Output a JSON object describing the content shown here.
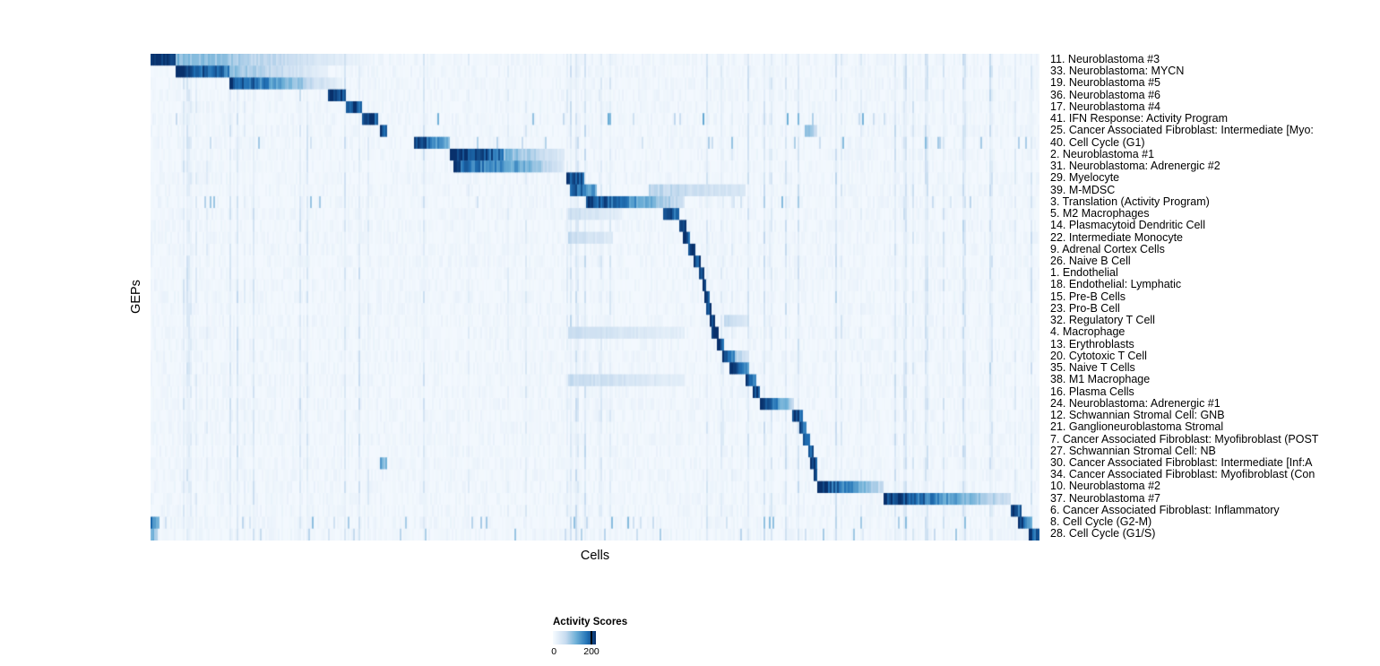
{
  "figure": {
    "ylabel": "GEPs",
    "xlabel": "Cells",
    "legend_title": "Activity Scores",
    "legend_min": "0",
    "legend_max": "200"
  },
  "chart_data": {
    "type": "heatmap",
    "title": "",
    "xlabel": "Cells",
    "ylabel": "GEPs",
    "value_range": [
      0,
      200
    ],
    "legend": {
      "title": "Activity Scores",
      "ticks": [
        0,
        200
      ],
      "position": "bottom"
    },
    "colormap": {
      "name": "Blues",
      "low": "#f7fbff",
      "mid": "#6baed6",
      "high": "#08306b"
    },
    "description": "Block-diagonal heatmap of GEP activity scores across cells ordered by program assignment; each row has a contiguous high-activity block (values given as fractional x start/end, peak and fade intensity on 0-1 scale of the 0-200 score range).",
    "rows": [
      {
        "label": "11. Neuroblastoma #3",
        "blocks": [
          [
            0.0,
            0.028,
            1.0,
            0.85
          ],
          [
            0.028,
            0.235,
            0.45,
            0.08
          ]
        ]
      },
      {
        "label": "33. Neuroblastoma: MYCN",
        "blocks": [
          [
            0.028,
            0.088,
            1.0,
            0.7
          ],
          [
            0.088,
            0.2,
            0.4,
            0.08
          ]
        ]
      },
      {
        "label": "19. Neuroblastoma #5",
        "blocks": [
          [
            0.088,
            0.178,
            0.95,
            0.3
          ],
          [
            0.178,
            0.215,
            0.25,
            0.08
          ]
        ]
      },
      {
        "label": "36. Neuroblastoma #6",
        "blocks": [
          [
            0.199,
            0.219,
            1.0,
            0.85
          ]
        ]
      },
      {
        "label": "17. Neuroblastoma #4",
        "blocks": [
          [
            0.219,
            0.237,
            1.0,
            0.85
          ]
        ]
      },
      {
        "label": "41. IFN Response: Activity Program",
        "blocks": [
          [
            0.237,
            0.256,
            1.0,
            0.85
          ]
        ],
        "scatter": [
          0.04,
          0.35
        ]
      },
      {
        "label": "25. Cancer Associated Fibroblast: Intermediate [Myo:",
        "blocks": [
          [
            0.258,
            0.267,
            1.0,
            0.9
          ],
          [
            0.735,
            0.75,
            0.45,
            0.25
          ]
        ]
      },
      {
        "label": "40. Cell Cycle (G1)",
        "blocks": [
          [
            0.296,
            0.336,
            1.0,
            0.45
          ]
        ],
        "scatter": [
          0.05,
          0.3
        ]
      },
      {
        "label": "2. Neuroblastoma #1",
        "blocks": [
          [
            0.336,
            0.398,
            1.0,
            0.75
          ],
          [
            0.398,
            0.465,
            0.45,
            0.12
          ]
        ]
      },
      {
        "label": "31. Neuroblastoma: Adrenergic #2",
        "blocks": [
          [
            0.34,
            0.43,
            0.85,
            0.45
          ],
          [
            0.43,
            0.466,
            0.4,
            0.12
          ]
        ]
      },
      {
        "label": "29. Myelocyte",
        "blocks": [
          [
            0.468,
            0.488,
            1.0,
            0.75
          ]
        ]
      },
      {
        "label": "39. M-MDSC",
        "blocks": [
          [
            0.472,
            0.503,
            0.9,
            0.5
          ],
          [
            0.56,
            0.67,
            0.28,
            0.15
          ]
        ]
      },
      {
        "label": "3. Translation (Activity Program)",
        "blocks": [
          [
            0.49,
            0.6,
            1.0,
            0.18
          ]
        ],
        "scatter": [
          0.04,
          0.3
        ]
      },
      {
        "label": "5. M2 Macrophages",
        "blocks": [
          [
            0.576,
            0.595,
            1.0,
            0.7
          ],
          [
            0.47,
            0.53,
            0.22,
            0.1
          ]
        ]
      },
      {
        "label": "14. Plasmacytoid Dendritic Cell",
        "blocks": [
          [
            0.595,
            0.602,
            1.0,
            0.9
          ]
        ]
      },
      {
        "label": "22. Intermediate Monocyte",
        "blocks": [
          [
            0.599,
            0.607,
            1.0,
            0.9
          ],
          [
            0.47,
            0.52,
            0.25,
            0.12
          ]
        ]
      },
      {
        "label": "9. Adrenal Cortex Cells",
        "blocks": [
          [
            0.605,
            0.613,
            1.0,
            0.9
          ]
        ]
      },
      {
        "label": "26. Naive B Cell",
        "blocks": [
          [
            0.611,
            0.618,
            1.0,
            0.9
          ]
        ]
      },
      {
        "label": "1. Endothelial",
        "blocks": [
          [
            0.616,
            0.623,
            1.0,
            0.9
          ]
        ]
      },
      {
        "label": "18. Endothelial: Lymphatic",
        "blocks": [
          [
            0.62,
            0.626,
            1.0,
            0.9
          ]
        ]
      },
      {
        "label": "15. Pre-B Cells",
        "blocks": [
          [
            0.623,
            0.629,
            1.0,
            0.9
          ]
        ]
      },
      {
        "label": "23. Pro-B Cell",
        "blocks": [
          [
            0.626,
            0.632,
            1.0,
            0.9
          ]
        ]
      },
      {
        "label": "32. Regulatory T Cell",
        "blocks": [
          [
            0.629,
            0.635,
            1.0,
            0.9
          ],
          [
            0.645,
            0.672,
            0.25,
            0.12
          ]
        ]
      },
      {
        "label": "4. Macrophage",
        "blocks": [
          [
            0.632,
            0.639,
            1.0,
            0.9
          ],
          [
            0.47,
            0.6,
            0.22,
            0.1
          ]
        ]
      },
      {
        "label": "13. Erythroblasts",
        "blocks": [
          [
            0.637,
            0.646,
            1.0,
            0.85
          ]
        ]
      },
      {
        "label": "20. Cytotoxic T Cell",
        "blocks": [
          [
            0.643,
            0.657,
            1.0,
            0.6
          ],
          [
            0.657,
            0.673,
            0.35,
            0.15
          ]
        ]
      },
      {
        "label": "35. Naive T Cells",
        "blocks": [
          [
            0.652,
            0.673,
            0.95,
            0.6
          ]
        ]
      },
      {
        "label": "38. M1 Macrophage",
        "blocks": [
          [
            0.67,
            0.681,
            1.0,
            0.75
          ],
          [
            0.47,
            0.6,
            0.25,
            0.1
          ]
        ]
      },
      {
        "label": "16. Plasma Cells",
        "blocks": [
          [
            0.678,
            0.686,
            1.0,
            0.85
          ]
        ]
      },
      {
        "label": "24. Neuroblastoma: Adrenergic #1",
        "blocks": [
          [
            0.686,
            0.723,
            1.0,
            0.28
          ]
        ]
      },
      {
        "label": "12. Schwannian Stromal Cell: GNB",
        "blocks": [
          [
            0.722,
            0.733,
            1.0,
            0.7
          ]
        ]
      },
      {
        "label": "21. Ganglioneuroblastoma Stromal",
        "blocks": [
          [
            0.729,
            0.738,
            1.0,
            0.7
          ]
        ]
      },
      {
        "label": "7. Cancer Associated Fibroblast: Myofibroblast (POST",
        "blocks": [
          [
            0.734,
            0.742,
            1.0,
            0.75
          ]
        ]
      },
      {
        "label": "27. Schwannian Stromal Cell: NB",
        "blocks": [
          [
            0.739,
            0.746,
            1.0,
            0.8
          ]
        ]
      },
      {
        "label": "30. Cancer Associated Fibroblast: Intermediate [Inf:A",
        "blocks": [
          [
            0.742,
            0.749,
            1.0,
            0.8
          ],
          [
            0.259,
            0.266,
            0.5,
            0.4
          ]
        ]
      },
      {
        "label": "34. Cancer Associated Fibroblast: Myofibroblast (Con",
        "blocks": [
          [
            0.745,
            0.751,
            1.0,
            0.8
          ]
        ]
      },
      {
        "label": "10. Neuroblastoma #2",
        "blocks": [
          [
            0.749,
            0.824,
            1.0,
            0.22
          ]
        ]
      },
      {
        "label": "37. Neuroblastoma #7",
        "blocks": [
          [
            0.824,
            0.968,
            1.0,
            0.18
          ]
        ]
      },
      {
        "label": "6. Cancer Associated Fibroblast: Inflammatory",
        "blocks": [
          [
            0.968,
            0.979,
            1.0,
            0.75
          ]
        ]
      },
      {
        "label": "8. Cell Cycle (G2-M)",
        "blocks": [
          [
            0.976,
            0.991,
            1.0,
            0.6
          ],
          [
            0.0,
            0.01,
            0.75,
            0.4
          ]
        ],
        "scatter": [
          0.05,
          0.3
        ]
      },
      {
        "label": "28. Cell Cycle (G1/S)",
        "blocks": [
          [
            0.988,
            1.0,
            1.0,
            0.75
          ],
          [
            0.0,
            0.008,
            0.55,
            0.3
          ]
        ],
        "scatter": [
          0.03,
          0.25
        ]
      }
    ]
  }
}
